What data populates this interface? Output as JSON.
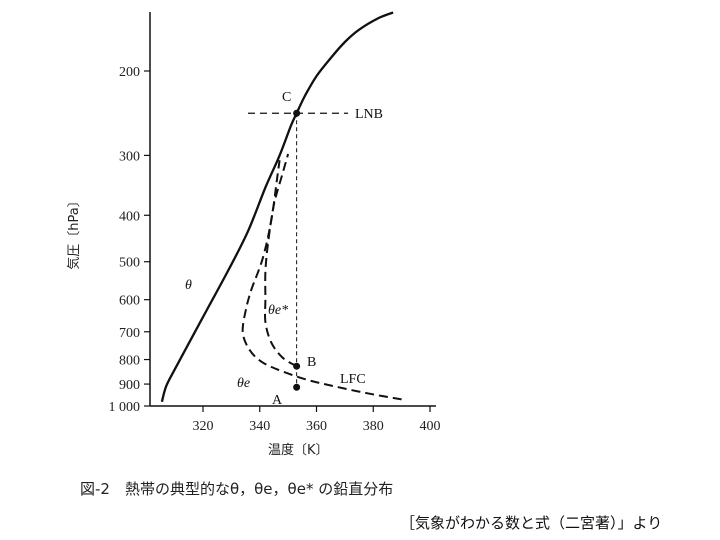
{
  "chart_data": {
    "type": "line",
    "xlabel": "温度〔K〕",
    "ylabel": "気圧〔hPa〕",
    "xlim": [
      302,
      412
    ],
    "ylim": [
      1000,
      150
    ],
    "y_scale": "log",
    "x_ticks": [
      320,
      340,
      360,
      380,
      400
    ],
    "y_ticks": [
      200,
      300,
      400,
      500,
      600,
      700,
      800,
      900,
      1000
    ],
    "y_tick_labels": [
      "200",
      "300",
      "400",
      "500",
      "600",
      "700",
      "800",
      "900",
      "1 000"
    ],
    "grid": false,
    "series": [
      {
        "name": "θ",
        "style": "solid",
        "points": [
          [
            305.5,
            980
          ],
          [
            307,
            910
          ],
          [
            310,
            840
          ],
          [
            315,
            740
          ],
          [
            322,
            620
          ],
          [
            329,
            520
          ],
          [
            336,
            430
          ],
          [
            342,
            350
          ],
          [
            347,
            300
          ],
          [
            351,
            260
          ],
          [
            353,
            245
          ],
          [
            356,
            225
          ],
          [
            360,
            205
          ],
          [
            365,
            188
          ],
          [
            370,
            174
          ],
          [
            375,
            164
          ],
          [
            382,
            155
          ],
          [
            387,
            151
          ]
        ]
      },
      {
        "name": "θe",
        "style": "dashed",
        "points": [
          [
            390,
            969
          ],
          [
            378,
            941
          ],
          [
            366,
            909
          ],
          [
            356,
            879
          ],
          [
            346,
            838
          ],
          [
            340,
            804
          ],
          [
            336,
            757
          ],
          [
            334,
            701
          ],
          [
            335,
            634
          ],
          [
            337,
            573
          ],
          [
            341,
            493
          ],
          [
            344,
            412
          ],
          [
            346,
            339
          ],
          [
            347,
            307
          ]
        ]
      },
      {
        "name": "θe*",
        "style": "dashed",
        "points": [
          [
            353,
            826
          ],
          [
            348,
            792
          ],
          [
            344,
            736
          ],
          [
            342,
            668
          ],
          [
            342,
            598
          ],
          [
            342,
            524
          ],
          [
            343,
            453
          ],
          [
            345,
            380
          ],
          [
            348,
            328
          ],
          [
            350,
            298
          ]
        ]
      }
    ],
    "points": [
      {
        "label": "C",
        "x": 353,
        "y": 245
      },
      {
        "label": "B",
        "x": 353,
        "y": 826
      },
      {
        "label": "A",
        "x": 353,
        "y": 914
      }
    ],
    "lines": {
      "lnb_pressure": 245,
      "parcel_temperature": 353
    },
    "annotations": {
      "c": "C",
      "lnb": "LNB",
      "b": "B",
      "lfc": "LFC",
      "a": "A",
      "theta": "θ",
      "theta_e_star": "θe*",
      "theta_e": "θe"
    }
  },
  "caption": "図-2　熱帯の典型的なθ，θe，θe* の鉛直分布",
  "source": "［気象がわかる数と式（二宮著）」より"
}
